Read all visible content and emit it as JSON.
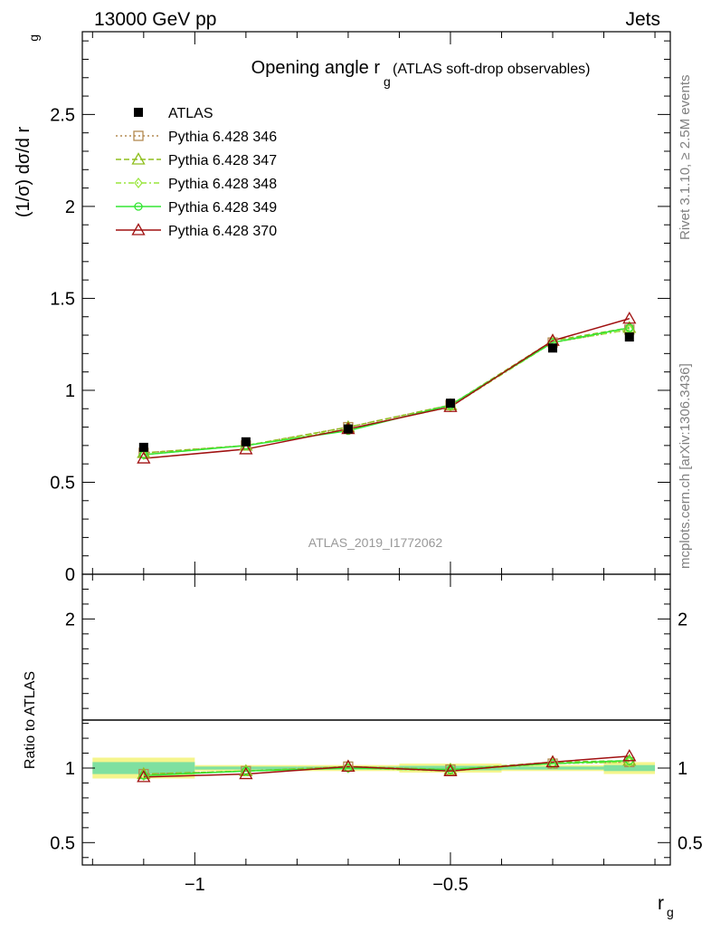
{
  "header": {
    "left": "13000 GeV pp",
    "right": "Jets"
  },
  "side_labels": {
    "rivet": "Rivet 3.1.10, ≥ 2.5M events",
    "mcplots": "mcplots.cern.ch [arXiv:1306.3436]"
  },
  "analysis_tag": "ATLAS_2019_I1772062",
  "chart_data": [
    {
      "type": "line",
      "title_main": "Opening angle r",
      "title_sub": "g",
      "title_extra": "(ATLAS soft-drop observables)",
      "ylabel": "(1/σ) dσ/d r",
      "ylabel_sub": "g",
      "ylim": [
        0,
        2.95
      ],
      "xlim": [
        -1.22,
        -0.07
      ],
      "yticks": [
        0,
        0.5,
        1,
        1.5,
        2,
        2.5
      ],
      "ytick_labels": [
        "0",
        "0.5",
        "1",
        "1.5",
        "2",
        "2.5"
      ],
      "x": [
        -1.1,
        -0.9,
        -0.7,
        -0.5,
        -0.3,
        -0.15
      ],
      "data": {
        "name": "ATLAS",
        "values": [
          0.69,
          0.72,
          0.79,
          0.93,
          1.23,
          1.29
        ],
        "bin_edges": [
          -1.2,
          -1.0,
          -0.8,
          -0.6,
          -0.4,
          -0.2,
          -0.1
        ]
      },
      "series": [
        {
          "name": "Pythia 6.428 346",
          "color": "#b48a50",
          "dash": "2,3",
          "marker": "square",
          "values": [
            0.66,
            0.7,
            0.8,
            0.92,
            1.26,
            1.33
          ]
        },
        {
          "name": "Pythia 6.428 347",
          "color": "#8fbf1f",
          "dash": "6,3",
          "marker": "triangle",
          "values": [
            0.66,
            0.7,
            0.8,
            0.92,
            1.27,
            1.34
          ]
        },
        {
          "name": "Pythia 6.428 348",
          "color": "#99e63c",
          "dash": "6,3,2,3",
          "marker": "diamond",
          "values": [
            0.65,
            0.7,
            0.79,
            0.91,
            1.26,
            1.33
          ]
        },
        {
          "name": "Pythia 6.428 349",
          "color": "#33e633",
          "dash": "",
          "marker": "circle",
          "values": [
            0.65,
            0.7,
            0.78,
            0.92,
            1.26,
            1.34
          ]
        },
        {
          "name": "Pythia 6.428 370",
          "color": "#a01010",
          "dash": "",
          "marker": "triangle",
          "values": [
            0.63,
            0.68,
            0.79,
            0.91,
            1.27,
            1.39
          ]
        }
      ]
    },
    {
      "type": "line",
      "ylabel": "Ratio to ATLAS",
      "ylim": [
        0.35,
        2.3
      ],
      "yticks": [
        0.5,
        1,
        2
      ],
      "ytick_labels": [
        "0.5",
        "1",
        "2"
      ],
      "xlabel": "r",
      "xlabel_sub": "g",
      "xticks": [
        -1,
        -0.5
      ],
      "xtick_labels": [
        "−1",
        "−0.5"
      ],
      "x": [
        -1.1,
        -0.9,
        -0.7,
        -0.5,
        -0.3,
        -0.15
      ],
      "bands": [
        {
          "x0": -1.2,
          "x1": -1.0,
          "yellow": [
            0.93,
            1.07
          ],
          "green": [
            0.96,
            1.04
          ]
        },
        {
          "x0": -1.0,
          "x1": -0.8,
          "yellow": [
            0.98,
            1.02
          ],
          "green": [
            0.99,
            1.01
          ]
        },
        {
          "x0": -0.8,
          "x1": -0.6,
          "yellow": [
            0.98,
            1.02
          ],
          "green": [
            0.99,
            1.01
          ]
        },
        {
          "x0": -0.6,
          "x1": -0.4,
          "yellow": [
            0.97,
            1.03
          ],
          "green": [
            0.985,
            1.015
          ]
        },
        {
          "x0": -0.4,
          "x1": -0.2,
          "yellow": [
            0.98,
            1.02
          ],
          "green": [
            0.99,
            1.01
          ]
        },
        {
          "x0": -0.2,
          "x1": -0.1,
          "yellow": [
            0.96,
            1.04
          ],
          "green": [
            0.98,
            1.02
          ]
        }
      ],
      "series": [
        {
          "name": "Pythia 6.428 346",
          "values": [
            0.96,
            0.98,
            1.01,
            0.99,
            1.03,
            1.04
          ]
        },
        {
          "name": "Pythia 6.428 347",
          "values": [
            0.96,
            0.98,
            1.01,
            0.99,
            1.04,
            1.05
          ]
        },
        {
          "name": "Pythia 6.428 348",
          "values": [
            0.95,
            0.98,
            1.0,
            0.98,
            1.03,
            1.04
          ]
        },
        {
          "name": "Pythia 6.428 349",
          "values": [
            0.95,
            0.98,
            1.0,
            0.99,
            1.03,
            1.05
          ]
        },
        {
          "name": "Pythia 6.428 370",
          "values": [
            0.94,
            0.96,
            1.01,
            0.98,
            1.04,
            1.08
          ]
        }
      ]
    }
  ]
}
